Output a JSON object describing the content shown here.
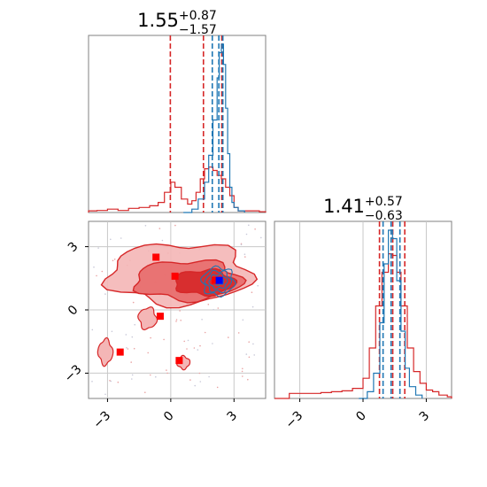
{
  "chart_data": [
    {
      "type": "line",
      "panel": "top-left histogram (parameter 1)",
      "title": {
        "base": "1.55",
        "sup": "+0.87",
        "sub": "−1.57"
      },
      "xlim": [
        -3.9,
        4.5
      ],
      "series": [
        {
          "color": "#d62728",
          "x": [
            -3.9,
            -3.5,
            -3.0,
            -2.5,
            -2.0,
            -1.5,
            -1.0,
            -0.6,
            -0.3,
            0.0,
            0.2,
            0.5,
            0.8,
            1.0,
            1.2,
            1.4,
            1.6,
            1.8,
            2.0,
            2.2,
            2.4,
            2.6,
            2.8,
            3.0,
            3.2,
            3.5,
            3.8,
            4.2,
            4.5
          ],
          "values": [
            0.01,
            0.012,
            0.02,
            0.012,
            0.025,
            0.03,
            0.04,
            0.06,
            0.12,
            0.18,
            0.15,
            0.08,
            0.05,
            0.07,
            0.12,
            0.2,
            0.26,
            0.27,
            0.25,
            0.22,
            0.2,
            0.15,
            0.1,
            0.03,
            0.01,
            0.01,
            0.01,
            0.005,
            0.0
          ],
          "quantiles": [
            -0.02,
            1.55,
            2.42
          ]
        },
        {
          "color": "#1f77b4",
          "x": [
            0.6,
            1.0,
            1.3,
            1.6,
            1.8,
            2.0,
            2.2,
            2.3,
            2.4,
            2.5,
            2.6,
            2.7,
            2.8,
            2.9,
            3.0,
            3.2,
            3.5
          ],
          "values": [
            0.0,
            0.02,
            0.08,
            0.18,
            0.34,
            0.55,
            0.8,
            0.95,
            1.0,
            0.88,
            0.62,
            0.35,
            0.15,
            0.06,
            0.03,
            0.01,
            0.0
          ],
          "quantiles": [
            1.97,
            2.28,
            2.47
          ]
        }
      ]
    },
    {
      "type": "line",
      "panel": "bottom-right histogram (parameter 2)",
      "title": {
        "base": "1.41",
        "sup": "+0.57",
        "sub": "−0.63"
      },
      "xlim": [
        -4.2,
        4.2
      ],
      "xticks": [
        "−3",
        "0",
        "3"
      ],
      "series": [
        {
          "color": "#d62728",
          "x": [
            -4.2,
            -3.5,
            -3.0,
            -2.5,
            -2.0,
            -1.5,
            -1.0,
            -0.5,
            0.0,
            0.3,
            0.6,
            0.9,
            1.2,
            1.4,
            1.6,
            1.8,
            2.1,
            2.4,
            2.7,
            3.0,
            3.3,
            3.6,
            4.0,
            4.2
          ],
          "values": [
            0.0,
            0.03,
            0.03,
            0.03,
            0.035,
            0.04,
            0.045,
            0.06,
            0.12,
            0.3,
            0.55,
            0.75,
            0.86,
            0.85,
            0.75,
            0.55,
            0.3,
            0.16,
            0.09,
            0.05,
            0.04,
            0.02,
            0.01,
            0.0
          ],
          "quantiles": [
            0.78,
            1.41,
            1.98
          ]
        },
        {
          "color": "#1f77b4",
          "x": [
            -0.2,
            0.2,
            0.5,
            0.8,
            1.0,
            1.2,
            1.4,
            1.6,
            1.8,
            2.0,
            2.2,
            2.5,
            2.8
          ],
          "values": [
            0.0,
            0.04,
            0.15,
            0.45,
            0.8,
            1.0,
            0.95,
            0.7,
            0.4,
            0.18,
            0.07,
            0.02,
            0.0
          ],
          "quantiles": [
            0.95,
            1.33,
            1.75
          ]
        }
      ]
    },
    {
      "type": "scatter",
      "panel": "bottom-left 2D posterior (parameter 1 vs parameter 2)",
      "xlim": [
        -3.9,
        4.5
      ],
      "ylim": [
        -4.2,
        4.2
      ],
      "xticks": [
        "−3",
        "0",
        "3"
      ],
      "yticks": [
        "−3",
        "0",
        "3"
      ],
      "grid": true,
      "red_density_peak": [
        2.2,
        1.3
      ],
      "blue_density_peak": [
        2.25,
        1.35
      ],
      "red_markers": [
        {
          "x": -0.7,
          "y": 2.5
        },
        {
          "x": 0.2,
          "y": 1.6
        },
        {
          "x": -0.5,
          "y": -0.3
        },
        {
          "x": -2.4,
          "y": -2.0
        },
        {
          "x": 0.4,
          "y": -2.4
        },
        {
          "x": 2.1,
          "y": 1.4
        }
      ],
      "blue_markers": [
        {
          "x": 2.3,
          "y": 1.4
        }
      ]
    }
  ]
}
